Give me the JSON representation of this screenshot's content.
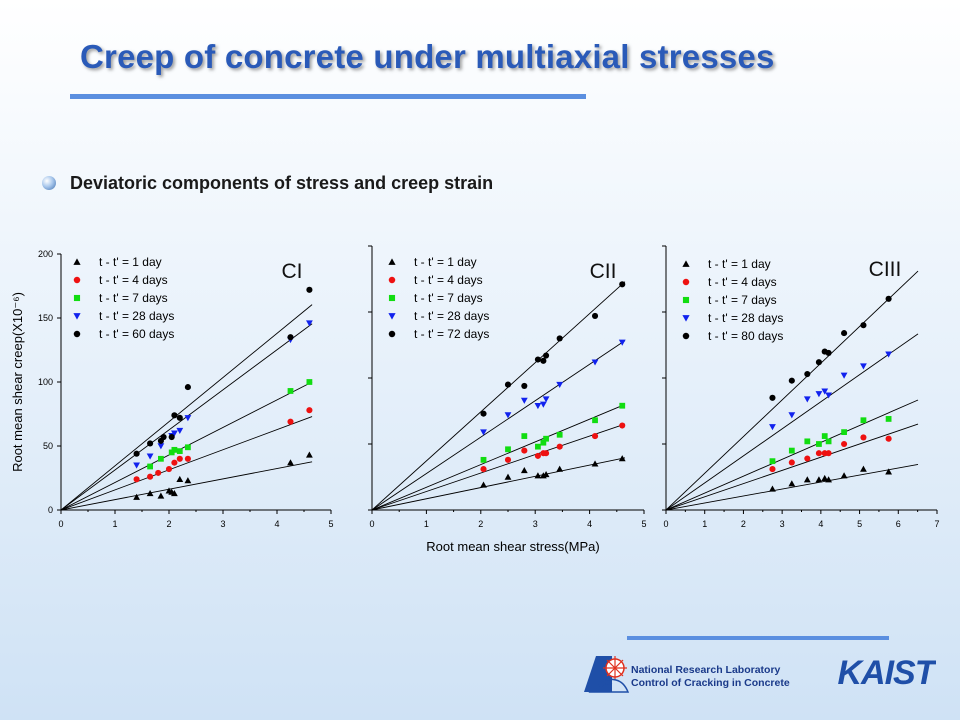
{
  "header": {
    "title": "Creep of concrete under multiaxial stresses",
    "bullet_text": "Deviatoric components of stress and creep strain"
  },
  "footer": {
    "lab_line1": "National Research Laboratory",
    "lab_line2": "Control of Cracking in Concrete",
    "kaist_text": "KAIST"
  },
  "colors": {
    "title": "#2a5ab8",
    "accent_line": "#5b8fe0",
    "series": [
      "#000000",
      "#ee1111",
      "#11dd11",
      "#1122ee",
      "#000000"
    ]
  },
  "series_markers": [
    "triangle-up",
    "circle",
    "square",
    "triangle-down",
    "circle"
  ],
  "chart_data": [
    {
      "type": "scatter",
      "panel_label": "CI",
      "ylabel": "Root mean shear creep(X10⁻⁶)",
      "xlabel": "",
      "xlim": [
        0,
        5
      ],
      "ylim": [
        0,
        200
      ],
      "xticks": [
        "0",
        "1",
        "2",
        "3",
        "4",
        "5"
      ],
      "yticks": [
        "0",
        "50",
        "100",
        "150",
        "200"
      ],
      "legend": "top-left",
      "series": [
        {
          "name": "t - t' = 1 day",
          "x": [
            1.4,
            1.65,
            1.85,
            2.0,
            2.05,
            2.1,
            2.2,
            2.35,
            4.25,
            4.6
          ],
          "y": [
            10,
            13,
            11,
            15,
            14,
            13,
            24,
            23,
            37,
            43
          ],
          "slope": 8.1
        },
        {
          "name": "t - t' = 4 days",
          "x": [
            1.4,
            1.65,
            1.8,
            2.0,
            2.1,
            2.2,
            2.35,
            4.25,
            4.6
          ],
          "y": [
            24,
            26,
            29,
            32,
            37,
            40,
            40,
            69,
            78
          ],
          "slope": 15.7
        },
        {
          "name": "t - t' = 7 days",
          "x": [
            1.65,
            1.85,
            2.05,
            2.1,
            2.2,
            2.35,
            4.25,
            4.6
          ],
          "y": [
            34,
            40,
            45,
            47,
            46,
            49,
            93,
            100
          ],
          "slope": 21.5
        },
        {
          "name": "t - t' = 28 days",
          "x": [
            1.4,
            1.65,
            1.85,
            2.05,
            2.1,
            2.2,
            2.35,
            4.25,
            4.6
          ],
          "y": [
            35,
            42,
            50,
            58,
            60,
            62,
            72,
            133,
            146
          ],
          "slope": 31.3
        },
        {
          "name": "t - t' = 60 days",
          "x": [
            1.4,
            1.65,
            1.85,
            1.9,
            2.05,
            2.1,
            2.2,
            2.35,
            4.25,
            4.6
          ],
          "y": [
            44,
            52,
            54,
            57,
            57,
            74,
            72,
            96,
            135,
            172
          ],
          "slope": 34.5
        }
      ]
    },
    {
      "type": "scatter",
      "panel_label": "CII",
      "ylabel": "",
      "xlabel": "Root mean shear stress(MPa)",
      "xlim": [
        0,
        5
      ],
      "ylim": [
        0,
        200
      ],
      "xticks": [
        "0",
        "1",
        "2",
        "3",
        "4",
        "5"
      ],
      "yticks": [],
      "legend": "top-left",
      "series": [
        {
          "name": "t - t' = 1 day",
          "x": [
            2.05,
            2.5,
            2.8,
            3.05,
            3.15,
            3.2,
            3.45,
            4.1,
            4.6
          ],
          "y": [
            19,
            25,
            30,
            26,
            26,
            27,
            31,
            35,
            39
          ],
          "slope": 8.5
        },
        {
          "name": "t - t' = 4 days",
          "x": [
            2.05,
            2.5,
            2.8,
            3.05,
            3.15,
            3.2,
            3.45,
            4.1,
            4.6
          ],
          "y": [
            31,
            38,
            45,
            41,
            43,
            43,
            48,
            56,
            64
          ],
          "slope": 14.0
        },
        {
          "name": "t - t' = 7 days",
          "x": [
            2.05,
            2.5,
            2.8,
            3.05,
            3.15,
            3.2,
            3.45,
            4.1,
            4.6
          ],
          "y": [
            38,
            46,
            56,
            48,
            51,
            54,
            57,
            68,
            79
          ],
          "slope": 17.2
        },
        {
          "name": "t - t' = 28 days",
          "x": [
            2.05,
            2.5,
            2.8,
            3.05,
            3.15,
            3.2,
            3.45,
            4.1,
            4.6
          ],
          "y": [
            59,
            72,
            83,
            79,
            80,
            84,
            95,
            112,
            127
          ],
          "slope": 27.6
        },
        {
          "name": "t - t' = 72 days",
          "x": [
            2.05,
            2.5,
            2.8,
            3.05,
            3.15,
            3.2,
            3.45,
            4.1,
            4.6
          ],
          "y": [
            73,
            95,
            94,
            114,
            113,
            117,
            130,
            147,
            171
          ],
          "slope": 37.2
        }
      ]
    },
    {
      "type": "scatter",
      "panel_label": "CIII",
      "ylabel": "",
      "xlabel": "",
      "xlim": [
        0,
        7
      ],
      "ylim": [
        0,
        200
      ],
      "xticks": [
        "0",
        "1",
        "2",
        "3",
        "4",
        "5",
        "6",
        "7"
      ],
      "yticks": [],
      "legend": "top-left",
      "series": [
        {
          "name": "t - t' = 1 day",
          "x": [
            2.75,
            3.25,
            3.65,
            3.95,
            4.1,
            4.2,
            4.6,
            5.1,
            5.75
          ],
          "y": [
            16,
            20,
            23,
            23,
            24,
            23,
            26,
            31,
            29
          ],
          "slope": 5.3
        },
        {
          "name": "t - t' = 4 days",
          "x": [
            2.75,
            3.25,
            3.65,
            3.95,
            4.1,
            4.2,
            4.6,
            5.1,
            5.75
          ],
          "y": [
            31,
            36,
            39,
            43,
            43,
            43,
            50,
            55,
            54
          ],
          "slope": 10.0
        },
        {
          "name": "t - t' = 7 days",
          "x": [
            2.75,
            3.25,
            3.65,
            3.95,
            4.1,
            4.2,
            4.6,
            5.1,
            5.75
          ],
          "y": [
            37,
            45,
            52,
            50,
            56,
            52,
            59,
            68,
            69
          ],
          "slope": 12.8
        },
        {
          "name": "t - t' = 28 days",
          "x": [
            2.75,
            3.25,
            3.65,
            3.95,
            4.1,
            4.2,
            4.6,
            5.1,
            5.75
          ],
          "y": [
            63,
            72,
            84,
            88,
            90,
            87,
            102,
            109,
            118
          ],
          "slope": 20.5
        },
        {
          "name": "t - t' = 80 days",
          "x": [
            2.75,
            3.25,
            3.65,
            3.95,
            4.1,
            4.2,
            4.6,
            5.1,
            5.75
          ],
          "y": [
            85,
            98,
            103,
            112,
            120,
            119,
            134,
            140,
            160
          ],
          "slope": 27.8
        }
      ]
    }
  ]
}
